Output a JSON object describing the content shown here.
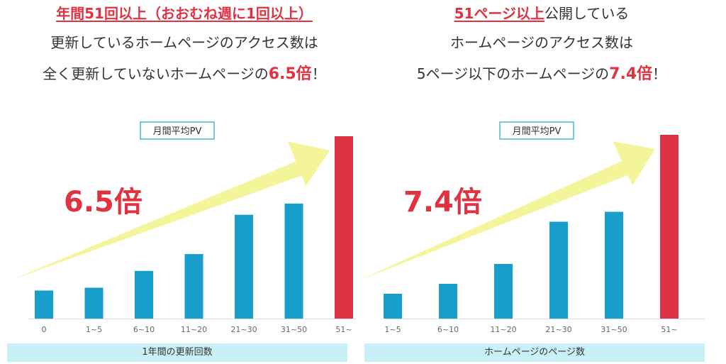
{
  "panels": [
    {
      "headline": {
        "line1_red": "年間51回以上（おおむね週に1回以上）",
        "line2": "更新しているホームページのアクセス数は",
        "line3_pre": "全く更新していないホームページの",
        "line3_emph": "6.5倍",
        "line3_post": "！"
      },
      "multiplier_label": "6.5倍",
      "axis_title": "1年間の更新回数"
    },
    {
      "headline": {
        "line1_red": "51ページ以上",
        "line1_rest": "公開している",
        "line2": "ホームページのアクセス数は",
        "line3_pre": "5ページ以下のホームページの",
        "line3_emph": "7.4倍",
        "line3_post": "！"
      },
      "multiplier_label": "7.4倍",
      "axis_title": "ホームページのページ数"
    }
  ],
  "colors": {
    "bar": "#179ecb",
    "highlight": "#dd3344",
    "arrow": "#f4f59a",
    "accent_text": "#e03240",
    "legend_border": "#22a7c7",
    "axis_band": "#c9eff7"
  },
  "chart_data": [
    {
      "type": "bar",
      "legend": "月間平均PV",
      "categories": [
        "0",
        "1~5",
        "6~10",
        "11~20",
        "21~30",
        "31~50",
        "51~"
      ],
      "values": [
        1.0,
        1.1,
        1.7,
        2.3,
        3.7,
        4.1,
        6.5
      ],
      "highlight_index": 6,
      "xlabel": "1年間の更新回数",
      "ylim": [
        0,
        6.5
      ]
    },
    {
      "type": "bar",
      "legend": "月間平均PV",
      "categories": [
        "1~5",
        "6~10",
        "11~20",
        "21~30",
        "31~50",
        "51~"
      ],
      "values": [
        1.0,
        1.4,
        2.2,
        3.9,
        4.3,
        7.4
      ],
      "highlight_index": 5,
      "xlabel": "ホームページのページ数",
      "ylim": [
        0,
        7.4
      ]
    }
  ]
}
